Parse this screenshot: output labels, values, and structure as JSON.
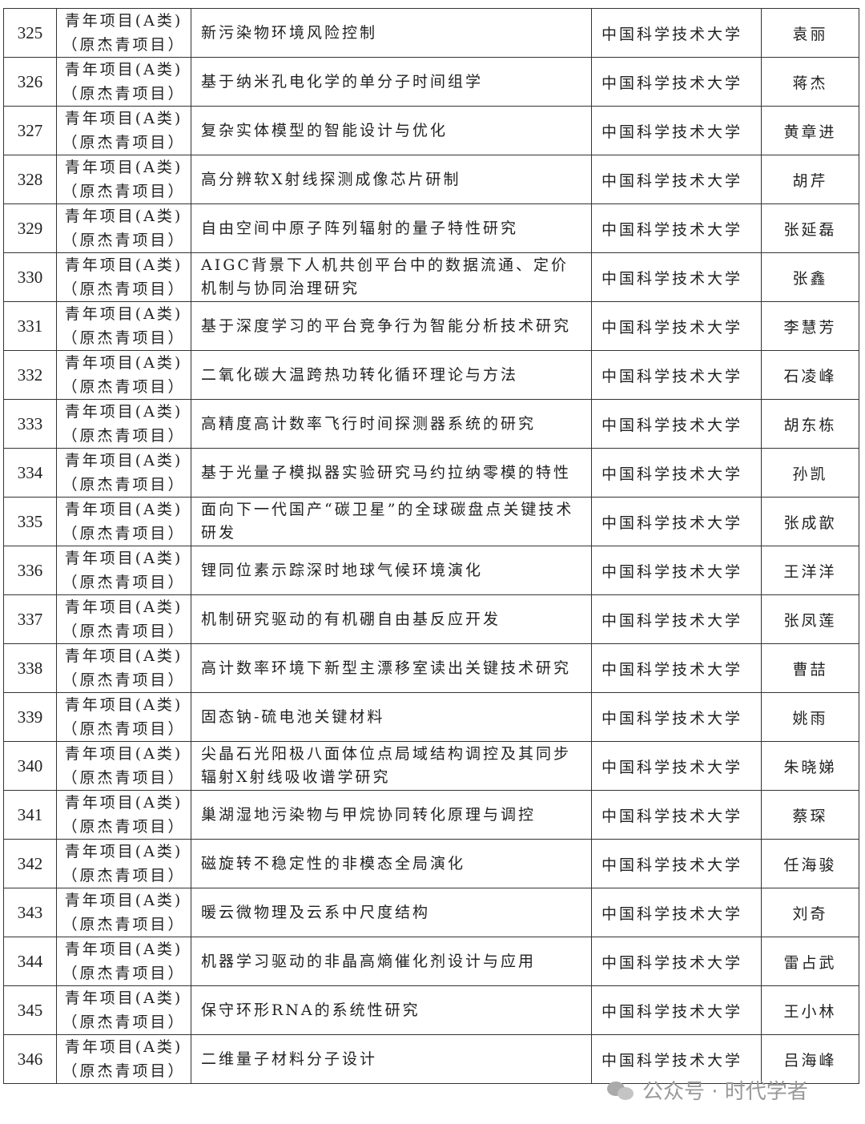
{
  "category_line1": "青年项目(A类)",
  "category_line2": "（原杰青项目）",
  "rows": [
    {
      "no": "325",
      "title": "新污染物环境风险控制",
      "org": "中国科学技术大学",
      "name": "袁丽"
    },
    {
      "no": "326",
      "title": "基于纳米孔电化学的单分子时间组学",
      "org": "中国科学技术大学",
      "name": "蒋杰"
    },
    {
      "no": "327",
      "title": "复杂实体模型的智能设计与优化",
      "org": "中国科学技术大学",
      "name": "黄章进"
    },
    {
      "no": "328",
      "title": "高分辨软X射线探测成像芯片研制",
      "org": "中国科学技术大学",
      "name": "胡芹"
    },
    {
      "no": "329",
      "title": "自由空间中原子阵列辐射的量子特性研究",
      "org": "中国科学技术大学",
      "name": "张延磊"
    },
    {
      "no": "330",
      "title": "AIGC背景下人机共创平台中的数据流通、定价机制与协同治理研究",
      "org": "中国科学技术大学",
      "name": "张鑫"
    },
    {
      "no": "331",
      "title": "基于深度学习的平台竞争行为智能分析技术研究",
      "org": "中国科学技术大学",
      "name": "李慧芳"
    },
    {
      "no": "332",
      "title": "二氧化碳大温跨热功转化循环理论与方法",
      "org": "中国科学技术大学",
      "name": "石凌峰"
    },
    {
      "no": "333",
      "title": "高精度高计数率飞行时间探测器系统的研究",
      "org": "中国科学技术大学",
      "name": "胡东栋"
    },
    {
      "no": "334",
      "title": "基于光量子模拟器实验研究马约拉纳零模的特性",
      "org": "中国科学技术大学",
      "name": "孙凯"
    },
    {
      "no": "335",
      "title": "面向下一代国产“碳卫星”的全球碳盘点关键技术研发",
      "org": "中国科学技术大学",
      "name": "张成歆"
    },
    {
      "no": "336",
      "title": "锂同位素示踪深时地球气候环境演化",
      "org": "中国科学技术大学",
      "name": "王洋洋"
    },
    {
      "no": "337",
      "title": "机制研究驱动的有机硼自由基反应开发",
      "org": "中国科学技术大学",
      "name": "张凤莲"
    },
    {
      "no": "338",
      "title": "高计数率环境下新型主漂移室读出关键技术研究",
      "org": "中国科学技术大学",
      "name": "曹喆"
    },
    {
      "no": "339",
      "title": "固态钠-硫电池关键材料",
      "org": "中国科学技术大学",
      "name": "姚雨"
    },
    {
      "no": "340",
      "title": "尖晶石光阳极八面体位点局域结构调控及其同步辐射X射线吸收谱学研究",
      "org": "中国科学技术大学",
      "name": "朱晓娣"
    },
    {
      "no": "341",
      "title": "巢湖湿地污染物与甲烷协同转化原理与调控",
      "org": "中国科学技术大学",
      "name": "蔡琛"
    },
    {
      "no": "342",
      "title": "磁旋转不稳定性的非模态全局演化",
      "org": "中国科学技术大学",
      "name": "任海骏"
    },
    {
      "no": "343",
      "title": "暖云微物理及云系中尺度结构",
      "org": "中国科学技术大学",
      "name": "刘奇"
    },
    {
      "no": "344",
      "title": "机器学习驱动的非晶高熵催化剂设计与应用",
      "org": "中国科学技术大学",
      "name": "雷占武"
    },
    {
      "no": "345",
      "title": "保守环形RNA的系统性研究",
      "org": "中国科学技术大学",
      "name": "王小林"
    },
    {
      "no": "346",
      "title": "二维量子材料分子设计",
      "org": "中国科学技术大学",
      "name": "吕海峰"
    }
  ],
  "watermark": "公众号 · 时代学者"
}
